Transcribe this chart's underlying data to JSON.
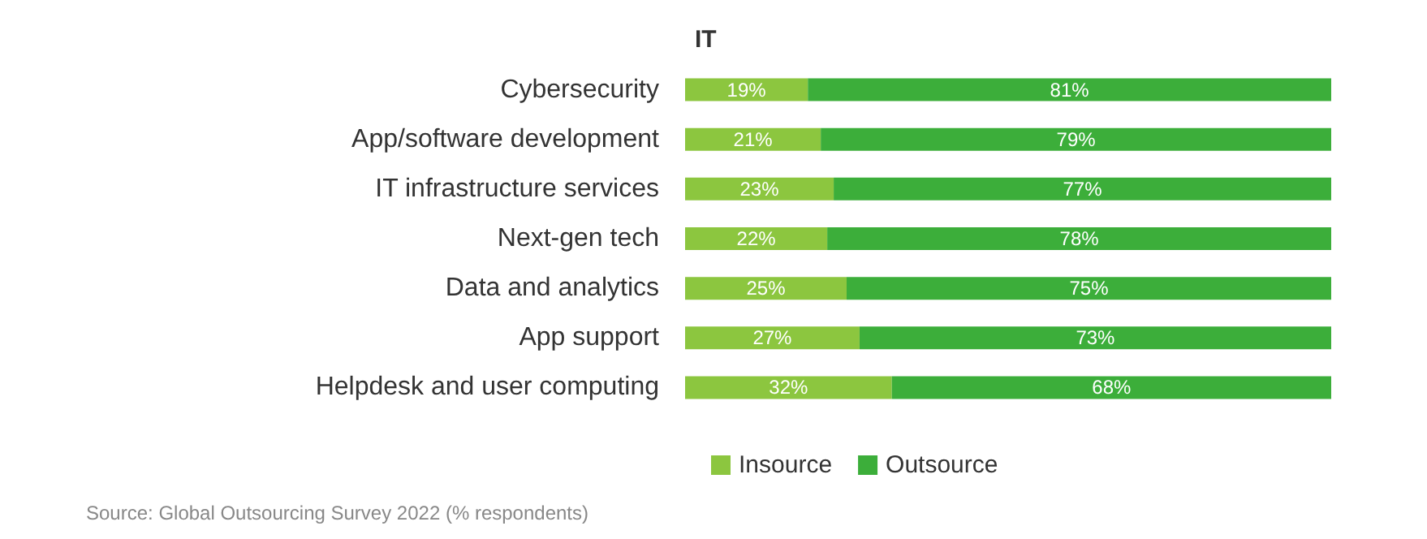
{
  "chart_data": {
    "type": "bar",
    "orientation": "horizontal",
    "stacked": true,
    "title": "IT",
    "categories": [
      "Cybersecurity",
      "App/software development",
      "IT infrastructure services",
      "Next-gen tech",
      "Data and analytics",
      "App support",
      "Helpdesk and user computing"
    ],
    "series": [
      {
        "name": "Insource",
        "color": "#8cc63f",
        "values": [
          19,
          21,
          23,
          22,
          25,
          27,
          32
        ],
        "value_labels": [
          "19%",
          "21%",
          "23%",
          "22%",
          "25%",
          "27%",
          "32%"
        ]
      },
      {
        "name": "Outsource",
        "color": "#3cae3a",
        "values": [
          81,
          79,
          77,
          78,
          75,
          73,
          68
        ],
        "value_labels": [
          "81%",
          "79%",
          "77%",
          "78%",
          "75%",
          "73%",
          "68%"
        ]
      }
    ],
    "legend": "bottom",
    "annotations": [
      "Source: Global Outsourcing Survey 2022 (% respondents)"
    ]
  }
}
